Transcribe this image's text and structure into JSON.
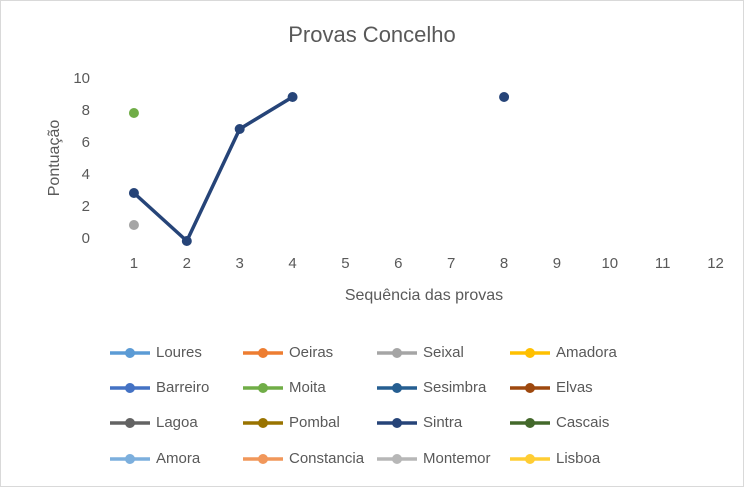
{
  "chart_data": {
    "type": "line",
    "title": "Provas Concelho",
    "x_label": "Sequência das provas",
    "y_label": "Pontuação",
    "categories": [
      1,
      2,
      3,
      4,
      5,
      6,
      7,
      8,
      9,
      10,
      11,
      12
    ],
    "ylim": [
      0,
      10
    ],
    "yticks": [
      0,
      2,
      4,
      6,
      8,
      10
    ],
    "grid": false,
    "legend": "bottom",
    "series": [
      {
        "name": "Loures",
        "color": "#5b9bd5",
        "values": [
          null,
          null,
          null,
          null,
          null,
          null,
          null,
          null,
          null,
          null,
          null,
          null
        ]
      },
      {
        "name": "Oeiras",
        "color": "#ed7d31",
        "values": [
          null,
          null,
          null,
          null,
          null,
          null,
          null,
          null,
          null,
          null,
          null,
          null
        ]
      },
      {
        "name": "Seixal",
        "color": "#a5a5a5",
        "values": [
          1,
          null,
          null,
          null,
          null,
          null,
          null,
          null,
          null,
          null,
          null,
          null
        ]
      },
      {
        "name": "Amadora",
        "color": "#ffc000",
        "values": [
          null,
          null,
          null,
          null,
          null,
          null,
          null,
          null,
          null,
          null,
          null,
          null
        ]
      },
      {
        "name": "Barreiro",
        "color": "#4472c4",
        "values": [
          null,
          null,
          null,
          null,
          null,
          null,
          null,
          null,
          null,
          null,
          null,
          null
        ]
      },
      {
        "name": "Moita",
        "color": "#70ad47",
        "values": [
          8,
          null,
          null,
          null,
          null,
          null,
          null,
          null,
          null,
          null,
          null,
          null
        ]
      },
      {
        "name": "Sesimbra",
        "color": "#255e91",
        "values": [
          null,
          null,
          null,
          null,
          null,
          null,
          null,
          null,
          null,
          null,
          null,
          null
        ]
      },
      {
        "name": "Elvas",
        "color": "#9e480e",
        "values": [
          null,
          null,
          null,
          null,
          null,
          null,
          null,
          null,
          null,
          null,
          null,
          null
        ]
      },
      {
        "name": "Lagoa",
        "color": "#636363",
        "values": [
          null,
          null,
          null,
          null,
          null,
          null,
          null,
          null,
          null,
          null,
          null,
          null
        ]
      },
      {
        "name": "Pombal",
        "color": "#997300",
        "values": [
          null,
          null,
          null,
          null,
          null,
          null,
          null,
          null,
          null,
          null,
          null,
          null
        ]
      },
      {
        "name": "Sintra",
        "color": "#264478",
        "values": [
          3,
          0,
          7,
          9,
          null,
          null,
          null,
          9,
          null,
          null,
          null,
          null
        ]
      },
      {
        "name": "Cascais",
        "color": "#43682b",
        "values": [
          null,
          null,
          null,
          null,
          null,
          null,
          null,
          null,
          null,
          null,
          null,
          null
        ]
      },
      {
        "name": "Amora",
        "color": "#7cafdd",
        "values": [
          null,
          null,
          null,
          null,
          null,
          null,
          null,
          null,
          null,
          null,
          null,
          null
        ]
      },
      {
        "name": "Constancia",
        "color": "#f1975a",
        "values": [
          null,
          null,
          null,
          null,
          null,
          null,
          null,
          null,
          null,
          null,
          null,
          null
        ]
      },
      {
        "name": "Montemor",
        "color": "#b7b7b7",
        "values": [
          null,
          null,
          null,
          null,
          null,
          null,
          null,
          null,
          null,
          null,
          null,
          null
        ]
      },
      {
        "name": "Lisboa",
        "color": "#ffcd33",
        "values": [
          null,
          null,
          null,
          null,
          null,
          null,
          null,
          null,
          null,
          null,
          null,
          null
        ]
      }
    ]
  }
}
